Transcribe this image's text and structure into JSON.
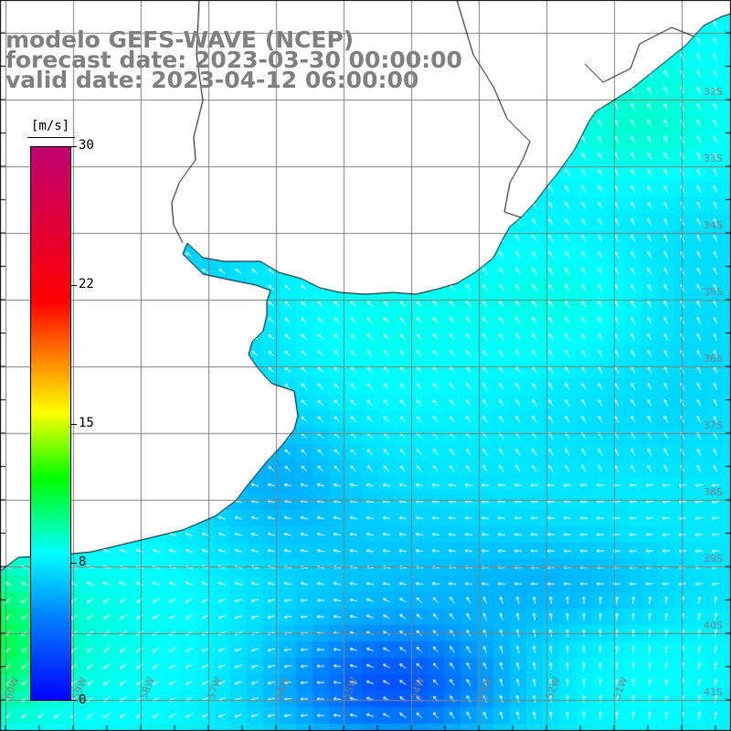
{
  "title": {
    "model": "modelo GEFS-WAVE (NCEP)",
    "forecast": "forecast date: 2023-03-30 00:00:00",
    "valid": "valid date: 2023-04-12 06:00:00"
  },
  "colorbar": {
    "unit": "[m/s]",
    "min": 0,
    "max": 30,
    "ticks": [
      "30",
      "22",
      "15",
      "8",
      "0"
    ],
    "colors": [
      "#0000ff",
      "#0080ff",
      "#00ffff",
      "#00ff00",
      "#ffff00",
      "#ff8000",
      "#ff0000",
      "#c00070"
    ]
  },
  "axes": {
    "lat_labels": [
      "32S",
      "33S",
      "34S",
      "35S",
      "36S",
      "37S",
      "38S",
      "39S",
      "40S",
      "41S"
    ],
    "lon_labels": [
      "60W",
      "59W",
      "58W",
      "57W",
      "56W",
      "55W",
      "54W",
      "53W",
      "52W",
      "51W"
    ]
  },
  "colors": {
    "land": "#ffffff",
    "grid": "#808080",
    "coast": "#000000",
    "arrow": "#ffffff",
    "title": "#808080"
  }
}
